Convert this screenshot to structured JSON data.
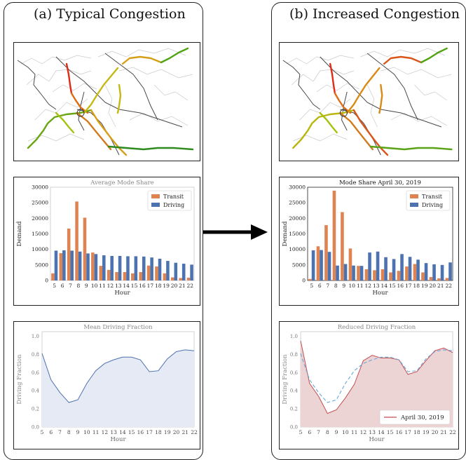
{
  "panels": {
    "left_title": "(a) Typical Congestion",
    "right_title": "(b) Increased Congestion"
  },
  "chart_data": [
    {
      "id": "avg_mode_share",
      "type": "bar",
      "title": "Average Mode Share",
      "xlabel": "Hour",
      "ylabel": "Demand",
      "ylim": [
        0,
        30000
      ],
      "yticks": [
        0,
        5000,
        10000,
        15000,
        20000,
        25000,
        30000
      ],
      "legend": "top-right",
      "categories": [
        "5",
        "6",
        "7",
        "8",
        "9",
        "10",
        "11",
        "12",
        "13",
        "14",
        "15",
        "16",
        "17",
        "18",
        "19",
        "20",
        "21",
        "22"
      ],
      "series": [
        {
          "name": "Transit",
          "color": "#dd8452",
          "values": [
            2300,
            8800,
            16700,
            25400,
            20200,
            9000,
            4700,
            3400,
            2700,
            2700,
            2300,
            2700,
            4800,
            4500,
            2300,
            1000,
            800,
            900
          ]
        },
        {
          "name": "Driving",
          "color": "#4c72b0",
          "values": [
            9600,
            9700,
            9600,
            9300,
            8700,
            8500,
            8100,
            7900,
            7900,
            7800,
            7800,
            7700,
            7400,
            7000,
            6300,
            5700,
            5400,
            5100
          ]
        }
      ]
    },
    {
      "id": "mode_share_apr30",
      "type": "bar",
      "title": "Mode Share April 30, 2019",
      "xlabel": "Hour",
      "ylabel": "Demand",
      "ylim": [
        0,
        30000
      ],
      "yticks": [
        0,
        5000,
        10000,
        15000,
        20000,
        25000,
        30000
      ],
      "legend": "top-right",
      "categories": [
        "5",
        "6",
        "7",
        "8",
        "9",
        "10",
        "11",
        "12",
        "13",
        "14",
        "15",
        "16",
        "17",
        "18",
        "19",
        "20",
        "21",
        "22"
      ],
      "series": [
        {
          "name": "Transit",
          "color": "#dd8452",
          "values": [
            500,
            11000,
            17800,
            28900,
            22000,
            10300,
            4700,
            3600,
            3300,
            3600,
            2600,
            3100,
            4500,
            5300,
            2600,
            1100,
            700,
            800
          ]
        },
        {
          "name": "Driving",
          "color": "#4c72b0",
          "values": [
            9700,
            9800,
            9200,
            4800,
            5300,
            4800,
            4700,
            9000,
            9300,
            7500,
            6900,
            8500,
            7600,
            6700,
            5600,
            5200,
            5000,
            5800
          ]
        }
      ]
    },
    {
      "id": "mean_driving_fraction",
      "type": "area",
      "title": "Mean Driving Fraction",
      "xlabel": "Hour",
      "ylabel": "Driving Fraction",
      "ylim": [
        0,
        1.05
      ],
      "yticks": [
        "0.0",
        "0.2",
        "0.4",
        "0.6",
        "0.8",
        "1.0"
      ],
      "x": [
        "5",
        "6",
        "7",
        "8",
        "9",
        "10",
        "11",
        "12",
        "13",
        "14",
        "15",
        "16",
        "17",
        "18",
        "19",
        "20",
        "21",
        "22"
      ],
      "series": [
        {
          "color": "#4c72b0",
          "values": [
            0.81,
            0.52,
            0.38,
            0.27,
            0.3,
            0.48,
            0.62,
            0.7,
            0.74,
            0.77,
            0.77,
            0.74,
            0.61,
            0.62,
            0.75,
            0.83,
            0.85,
            0.84
          ]
        }
      ]
    },
    {
      "id": "reduced_driving_fraction",
      "type": "area",
      "title": "Reduced Driving Fraction",
      "xlabel": "Hour",
      "ylabel": "Driving Fraction",
      "ylim": [
        0,
        1.05
      ],
      "yticks": [
        "0.0",
        "0.2",
        "0.4",
        "0.6",
        "0.8",
        "1.0"
      ],
      "legend": "bottom-right",
      "x": [
        "5",
        "6",
        "7",
        "8",
        "9",
        "10",
        "11",
        "12",
        "13",
        "14",
        "15",
        "16",
        "17",
        "18",
        "19",
        "20",
        "21",
        "22"
      ],
      "series": [
        {
          "name": "April 30, 2019",
          "color": "#c44e52",
          "values": [
            0.95,
            0.48,
            0.34,
            0.15,
            0.19,
            0.32,
            0.47,
            0.73,
            0.79,
            0.76,
            0.76,
            0.74,
            0.58,
            0.61,
            0.73,
            0.84,
            0.87,
            0.82
          ]
        },
        {
          "color": "#6aa6d8",
          "dashed": true,
          "values": [
            0.81,
            0.52,
            0.38,
            0.27,
            0.3,
            0.48,
            0.62,
            0.7,
            0.74,
            0.77,
            0.77,
            0.74,
            0.61,
            0.62,
            0.75,
            0.83,
            0.85,
            0.84
          ]
        }
      ]
    }
  ]
}
